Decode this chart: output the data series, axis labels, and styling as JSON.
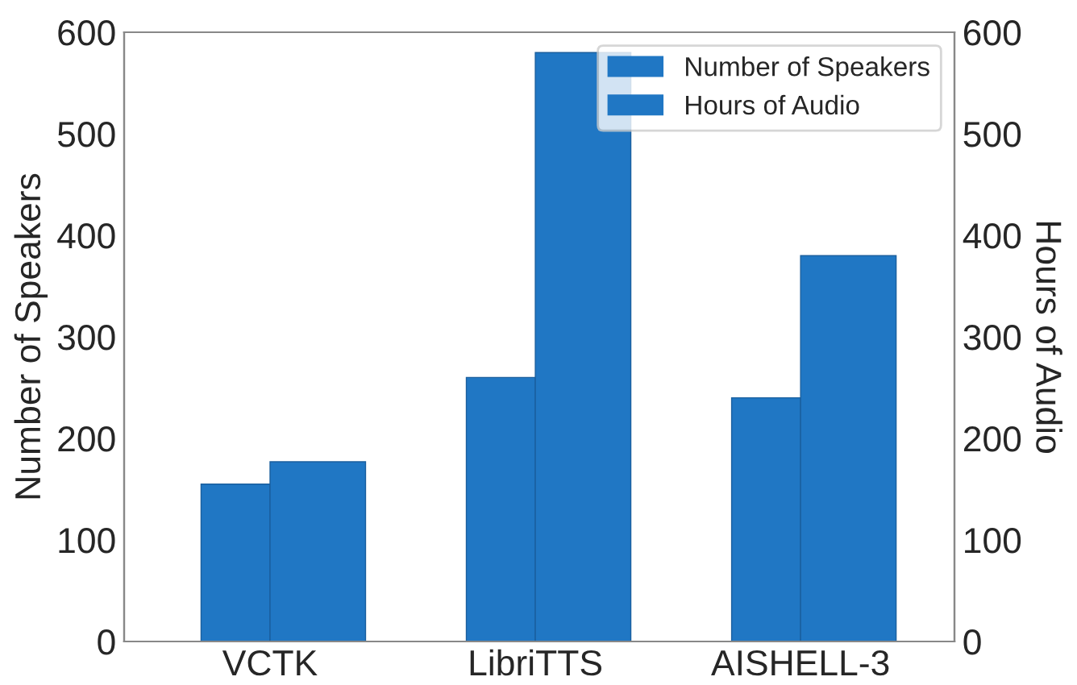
{
  "chart_data": {
    "type": "bar",
    "categories": [
      "VCTK",
      "LibriTTS",
      "AISHELL-3"
    ],
    "series": [
      {
        "name": "Number of Speakers",
        "color": "#2077c4",
        "values": [
          155,
          260,
          240
        ]
      },
      {
        "name": "Hours of Audio",
        "color": "#2077c4",
        "values": [
          177,
          580,
          380
        ],
        "axis": "y2"
      }
    ],
    "ylabel": "Number of Speakers",
    "y2label": "Hours of Audio",
    "ylim": [
      0,
      600
    ],
    "yticks": [
      0,
      100,
      200,
      300,
      400,
      500,
      600
    ],
    "y2lim": [
      0,
      600
    ],
    "y2ticks": [
      0,
      100,
      200,
      300,
      400,
      500,
      600
    ],
    "legend": "top right",
    "grid": false
  }
}
